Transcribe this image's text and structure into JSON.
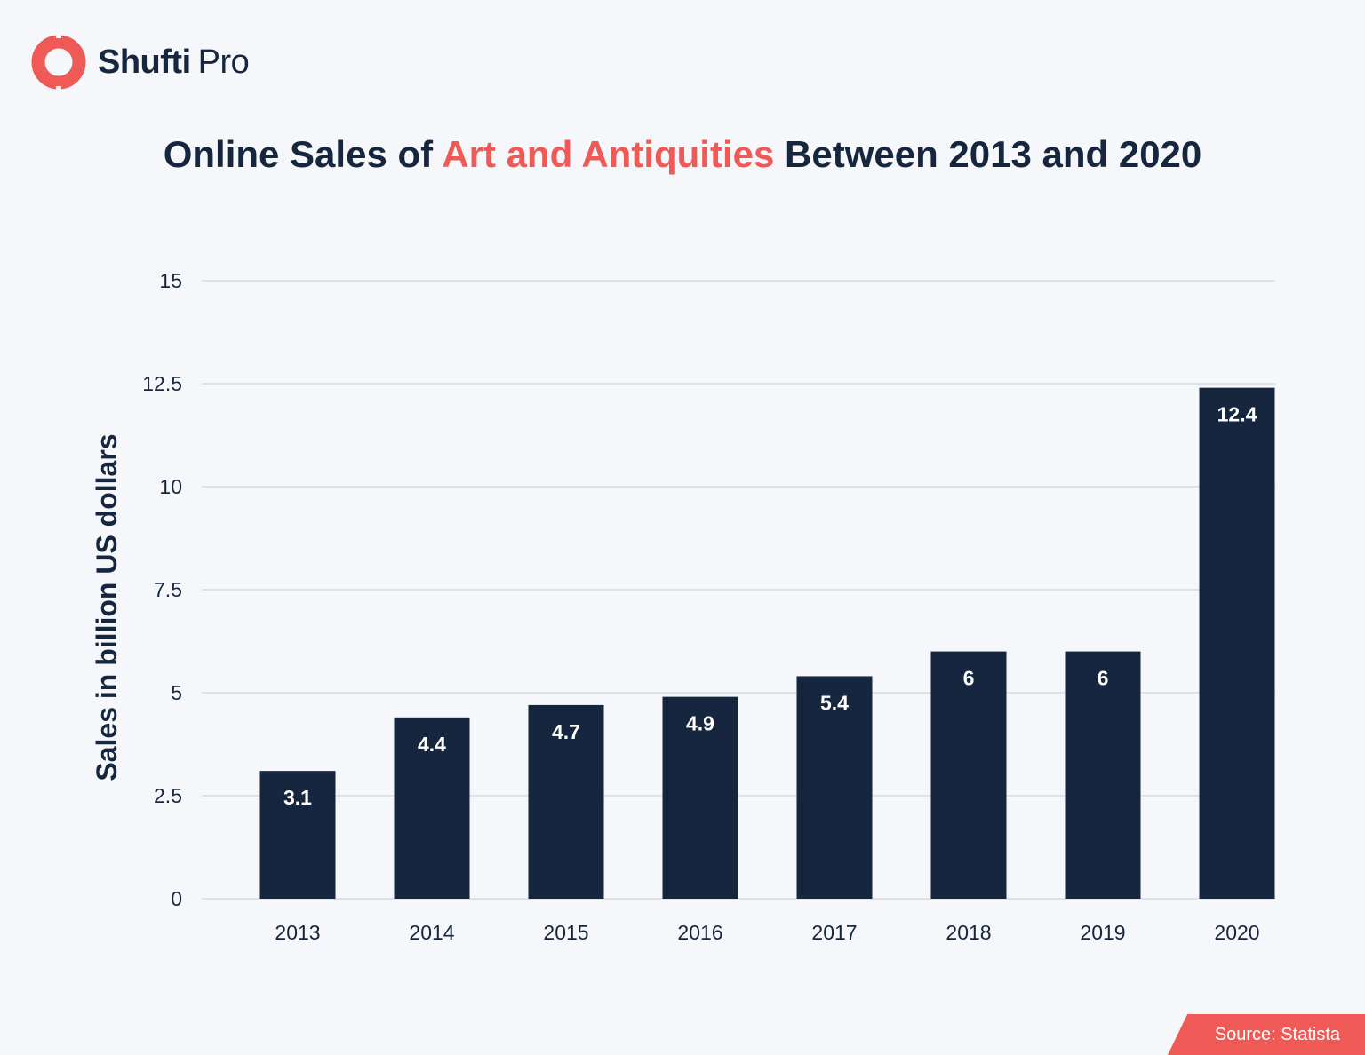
{
  "brand": {
    "name_bold": "Shufti",
    "name_light": "Pro",
    "accent": "#f05a56",
    "dark": "#16263f"
  },
  "title": {
    "part1": "Online Sales of ",
    "highlight": "Art and Antiquities",
    "part2": " Between 2013 and 2020"
  },
  "source": "Source: Statista",
  "chart_data": {
    "type": "bar",
    "title": "Online Sales of Art and Antiquities Between 2013 and 2020",
    "xlabel": "",
    "ylabel": "Sales in billion US dollars",
    "categories": [
      "2013",
      "2014",
      "2015",
      "2016",
      "2017",
      "2018",
      "2019",
      "2020"
    ],
    "values": [
      3.1,
      4.4,
      4.7,
      4.9,
      5.4,
      6,
      6,
      12.4
    ],
    "ylim": [
      0,
      15
    ],
    "yticks": [
      "0",
      "2.5",
      "5",
      "7.5",
      "10",
      "12.5",
      "15"
    ],
    "grid": true,
    "bar_color": "#16263f",
    "data_labels": "inside-top"
  }
}
